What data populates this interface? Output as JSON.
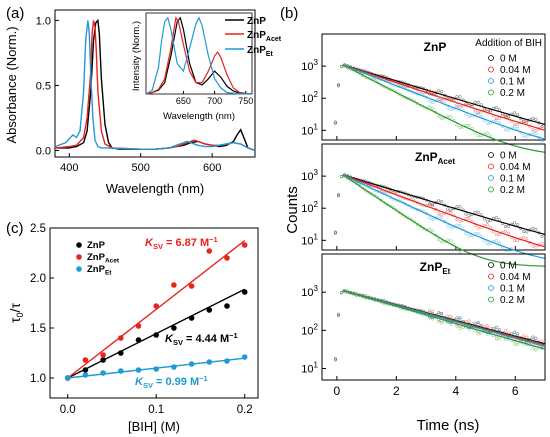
{
  "panel_a": {
    "label": "(a)",
    "ylabel": "Absorbance (Norm.)",
    "xlabel": "Wavelength (nm)",
    "legend": [
      {
        "base": "ZnP",
        "sub": "",
        "color": "#000000"
      },
      {
        "base": "ZnP",
        "sub": "Acet",
        "color": "#e8241c"
      },
      {
        "base": "ZnP",
        "sub": "Et",
        "color": "#1f9ad6"
      }
    ],
    "inset": {
      "ylabel": "Intensity (Norm.)",
      "xlabel": "Wavelength (nm)"
    }
  },
  "panel_b": {
    "label": "(b)",
    "ylabel": "Counts",
    "xlabel": "Time (ns)",
    "legend_title": "Addition of BIH",
    "subpanels": [
      {
        "base": "ZnP",
        "sub": "",
        "conc": [
          "0 M",
          "0.04 M",
          "0.1 M",
          "0.2 M"
        ]
      },
      {
        "base": "ZnP",
        "sub": "Acet",
        "conc": [
          "0 M",
          "0.04 M",
          "0.1 M",
          "0.2 M"
        ]
      },
      {
        "base": "ZnP",
        "sub": "Et",
        "conc": [
          "0 M",
          "0.04 M",
          "0.1 M",
          "0.2 M"
        ]
      }
    ]
  },
  "panel_c": {
    "label": "(c)",
    "xlabel": "[BIH] (M)",
    "ylabel_base": "τ",
    "ylabel_sub": "0",
    "ylabel_tail": "/τ",
    "legend": [
      {
        "base": "ZnP",
        "sub": "",
        "color": "#000000"
      },
      {
        "base": "ZnP",
        "sub": "Acet",
        "color": "#e8241c"
      },
      {
        "base": "ZnP",
        "sub": "Et",
        "color": "#1f9ad6"
      }
    ],
    "ksv": [
      {
        "k": "K",
        "sub": "SV",
        "val": " = 4.44 M",
        "sup": "−1",
        "color": "#000000"
      },
      {
        "k": "K",
        "sub": "SV",
        "val": " = 6.87 M",
        "sup": "−1",
        "color": "#e8241c"
      },
      {
        "k": "K",
        "sub": "SV",
        "val": " = 0.99 M",
        "sup": "−1",
        "color": "#1f9ad6"
      }
    ]
  },
  "chart_data": [
    {
      "type": "line",
      "panel": "(a)",
      "xlabel": "Wavelength (nm)",
      "ylabel": "Absorbance (Norm.)",
      "xlim": [
        380,
        660
      ],
      "ylim": [
        -0.05,
        1.08
      ],
      "xticks": [
        400,
        500,
        600
      ],
      "yticks": [
        0.0,
        0.5,
        1.0
      ],
      "series": [
        {
          "name": "ZnP",
          "color": "#000000",
          "x": [
            380,
            400,
            410,
            420,
            425,
            430,
            434,
            437,
            440,
            442,
            445,
            450,
            455,
            460,
            470,
            500,
            520,
            540,
            550,
            560,
            570,
            580,
            590,
            600,
            610,
            620,
            630,
            635,
            640,
            645,
            650,
            660
          ],
          "y": [
            0.02,
            0.02,
            0.03,
            0.06,
            0.15,
            0.45,
            0.85,
            0.98,
            1.0,
            0.9,
            0.55,
            0.2,
            0.06,
            0.02,
            0.01,
            0.01,
            0.01,
            0.02,
            0.03,
            0.04,
            0.06,
            0.07,
            0.05,
            0.04,
            0.03,
            0.04,
            0.07,
            0.12,
            0.16,
            0.09,
            0.02,
            0.0
          ]
        },
        {
          "name": "ZnP_Acet",
          "color": "#e8241c",
          "x": [
            380,
            400,
            410,
            420,
            425,
            430,
            432,
            434,
            436,
            438,
            440,
            445,
            450,
            460,
            500,
            520,
            540,
            550,
            560,
            570,
            575,
            580,
            590,
            600,
            610,
            620,
            630,
            640,
            650,
            660
          ],
          "y": [
            0.02,
            0.03,
            0.04,
            0.1,
            0.25,
            0.6,
            0.9,
            1.0,
            0.95,
            0.75,
            0.45,
            0.15,
            0.05,
            0.02,
            0.01,
            0.01,
            0.02,
            0.03,
            0.05,
            0.07,
            0.08,
            0.07,
            0.05,
            0.04,
            0.04,
            0.05,
            0.06,
            0.05,
            0.02,
            0.0
          ]
        },
        {
          "name": "ZnP_Et",
          "color": "#1f9ad6",
          "x": [
            380,
            395,
            405,
            410,
            415,
            420,
            423,
            426,
            428,
            430,
            433,
            436,
            440,
            445,
            450,
            500,
            520,
            540,
            550,
            560,
            565,
            570,
            580,
            590,
            600,
            610,
            620,
            630,
            640,
            650,
            660
          ],
          "y": [
            0.03,
            0.06,
            0.12,
            0.1,
            0.15,
            0.45,
            0.85,
            1.0,
            0.9,
            0.6,
            0.25,
            0.08,
            0.03,
            0.02,
            0.02,
            0.01,
            0.01,
            0.02,
            0.04,
            0.06,
            0.07,
            0.06,
            0.04,
            0.03,
            0.03,
            0.04,
            0.05,
            0.06,
            0.05,
            0.02,
            0.0
          ]
        }
      ]
    },
    {
      "type": "line",
      "panel": "(a) inset",
      "xlabel": "Wavelength (nm)",
      "ylabel": "Intensity (Norm.)",
      "xlim": [
        590,
        760
      ],
      "ylim": [
        0,
        1.05
      ],
      "xticks": [
        650,
        700,
        750
      ],
      "series": [
        {
          "name": "ZnP",
          "color": "#000000",
          "x": [
            590,
            600,
            610,
            620,
            630,
            640,
            645,
            650,
            660,
            670,
            680,
            690,
            700,
            710,
            720,
            730,
            740,
            760
          ],
          "y": [
            0.0,
            0.02,
            0.05,
            0.15,
            0.5,
            0.95,
            1.0,
            0.85,
            0.4,
            0.15,
            0.12,
            0.2,
            0.3,
            0.22,
            0.1,
            0.04,
            0.01,
            0.0
          ]
        },
        {
          "name": "ZnP_Acet",
          "color": "#e8241c",
          "x": [
            590,
            600,
            610,
            620,
            630,
            638,
            642,
            650,
            660,
            670,
            680,
            690,
            700,
            705,
            710,
            720,
            730,
            740,
            760
          ],
          "y": [
            0.0,
            0.02,
            0.06,
            0.2,
            0.6,
            1.0,
            0.95,
            0.65,
            0.3,
            0.15,
            0.15,
            0.3,
            0.5,
            0.55,
            0.48,
            0.25,
            0.08,
            0.02,
            0.0
          ]
        },
        {
          "name": "ZnP_Et",
          "color": "#1f9ad6",
          "x": [
            590,
            600,
            610,
            615,
            620,
            625,
            630,
            640,
            650,
            660,
            670,
            675,
            680,
            690,
            700,
            710,
            720,
            740,
            760
          ],
          "y": [
            0.0,
            0.05,
            0.35,
            0.7,
            0.95,
            1.0,
            0.85,
            0.4,
            0.3,
            0.6,
            0.92,
            1.0,
            0.9,
            0.5,
            0.2,
            0.08,
            0.02,
            0.0,
            0.0
          ]
        }
      ]
    },
    {
      "type": "scatter",
      "panel": "(b)",
      "xlabel": "Time (ns)",
      "ylabel": "Counts",
      "xlim": [
        -0.5,
        7
      ],
      "ylim": [
        5,
        10000
      ],
      "yscale": "log",
      "xticks": [
        0,
        2,
        4,
        6
      ],
      "series": [
        {
          "subpanel": "ZnP",
          "name": "0 M",
          "color": "#000000",
          "peak": 1100,
          "tau_ns": 1.55
        },
        {
          "subpanel": "ZnP",
          "name": "0.04 M",
          "color": "#e8241c",
          "peak": 1100,
          "tau_ns": 1.4
        },
        {
          "subpanel": "ZnP",
          "name": "0.1 M",
          "color": "#1f9ad6",
          "peak": 1100,
          "tau_ns": 1.2
        },
        {
          "subpanel": "ZnP",
          "name": "0.2 M",
          "color": "#2a9d2a",
          "peak": 1100,
          "tau_ns": 0.9
        },
        {
          "subpanel": "ZnP_Acet",
          "name": "0 M",
          "color": "#000000",
          "peak": 1100,
          "tau_ns": 1.55
        },
        {
          "subpanel": "ZnP_Acet",
          "name": "0.04 M",
          "color": "#e8241c",
          "peak": 1100,
          "tau_ns": 1.25
        },
        {
          "subpanel": "ZnP_Acet",
          "name": "0.1 M",
          "color": "#1f9ad6",
          "peak": 1100,
          "tau_ns": 1.0
        },
        {
          "subpanel": "ZnP_Acet",
          "name": "0.2 M",
          "color": "#2a9d2a",
          "peak": 1100,
          "tau_ns": 0.7
        },
        {
          "subpanel": "ZnP_Et",
          "name": "0 M",
          "color": "#000000",
          "peak": 1100,
          "tau_ns": 2.1
        },
        {
          "subpanel": "ZnP_Et",
          "name": "0.04 M",
          "color": "#e8241c",
          "peak": 1100,
          "tau_ns": 2.05
        },
        {
          "subpanel": "ZnP_Et",
          "name": "0.1 M",
          "color": "#1f9ad6",
          "peak": 1100,
          "tau_ns": 2.0
        },
        {
          "subpanel": "ZnP_Et",
          "name": "0.2 M",
          "color": "#2a9d2a",
          "peak": 1100,
          "tau_ns": 1.9
        }
      ]
    },
    {
      "type": "scatter",
      "panel": "(c)",
      "xlabel": "[BIH] (M)",
      "ylabel": "τ0/τ",
      "xlim": [
        -0.02,
        0.215
      ],
      "ylim": [
        0.8,
        2.5
      ],
      "xticks": [
        0.0,
        0.1,
        0.2
      ],
      "yticks": [
        1.0,
        1.5,
        2.0,
        2.5
      ],
      "x": [
        0.0,
        0.02,
        0.04,
        0.06,
        0.08,
        0.1,
        0.12,
        0.14,
        0.16,
        0.18,
        0.2
      ],
      "series": [
        {
          "name": "ZnP",
          "color": "#000000",
          "slope": 4.44,
          "values": [
            1.0,
            1.08,
            1.18,
            1.25,
            1.38,
            1.43,
            1.5,
            1.6,
            1.68,
            1.72,
            1.86
          ]
        },
        {
          "name": "ZnP_Acet",
          "color": "#e8241c",
          "slope": 6.87,
          "values": [
            1.0,
            1.18,
            1.23,
            1.4,
            1.52,
            1.72,
            1.93,
            1.92,
            2.27,
            2.2,
            2.33
          ]
        },
        {
          "name": "ZnP_Et",
          "color": "#1f9ad6",
          "slope": 0.99,
          "values": [
            1.0,
            1.03,
            1.05,
            1.07,
            1.08,
            1.09,
            1.11,
            1.14,
            1.16,
            1.17,
            1.21
          ]
        }
      ]
    }
  ]
}
